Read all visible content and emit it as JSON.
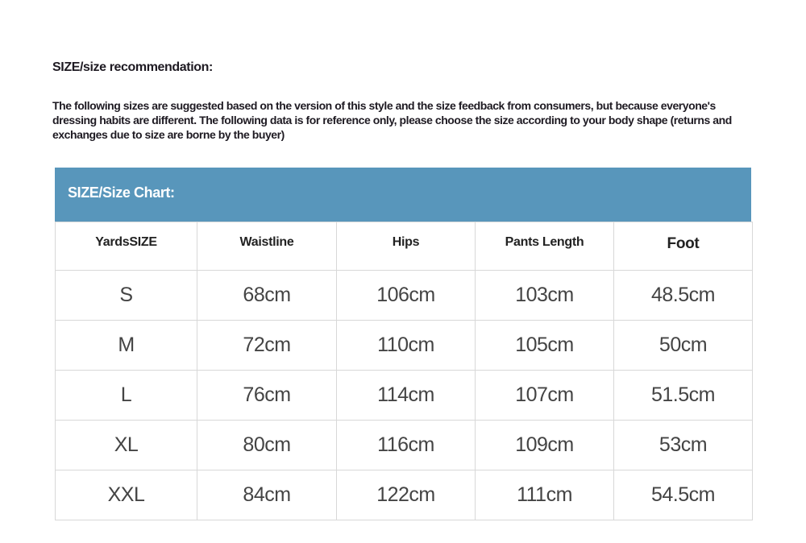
{
  "heading": "SIZE/size recommendation:",
  "paragraph": "The following sizes are suggested based on the version of this style and the size feedback from consumers, but because everyone's dressing habits are different. The following data is for reference only, please choose the size according to your body shape (returns and exchanges due to size are borne by the buyer)",
  "chart_title": "SIZE/Size Chart:",
  "accent_color": "#5896bb",
  "table": {
    "headers": [
      "YardsSIZE",
      "Waistline",
      "Hips",
      "Pants Length",
      "Foot"
    ],
    "rows": [
      [
        "S",
        "68cm",
        "106cm",
        "103cm",
        "48.5cm"
      ],
      [
        "M",
        "72cm",
        "110cm",
        "105cm",
        "50cm"
      ],
      [
        "L",
        "76cm",
        "114cm",
        "107cm",
        "51.5cm"
      ],
      [
        "XL",
        "80cm",
        "116cm",
        "109cm",
        "53cm"
      ],
      [
        "XXL",
        "84cm",
        "122cm",
        "111cm",
        "54.5cm"
      ]
    ]
  }
}
